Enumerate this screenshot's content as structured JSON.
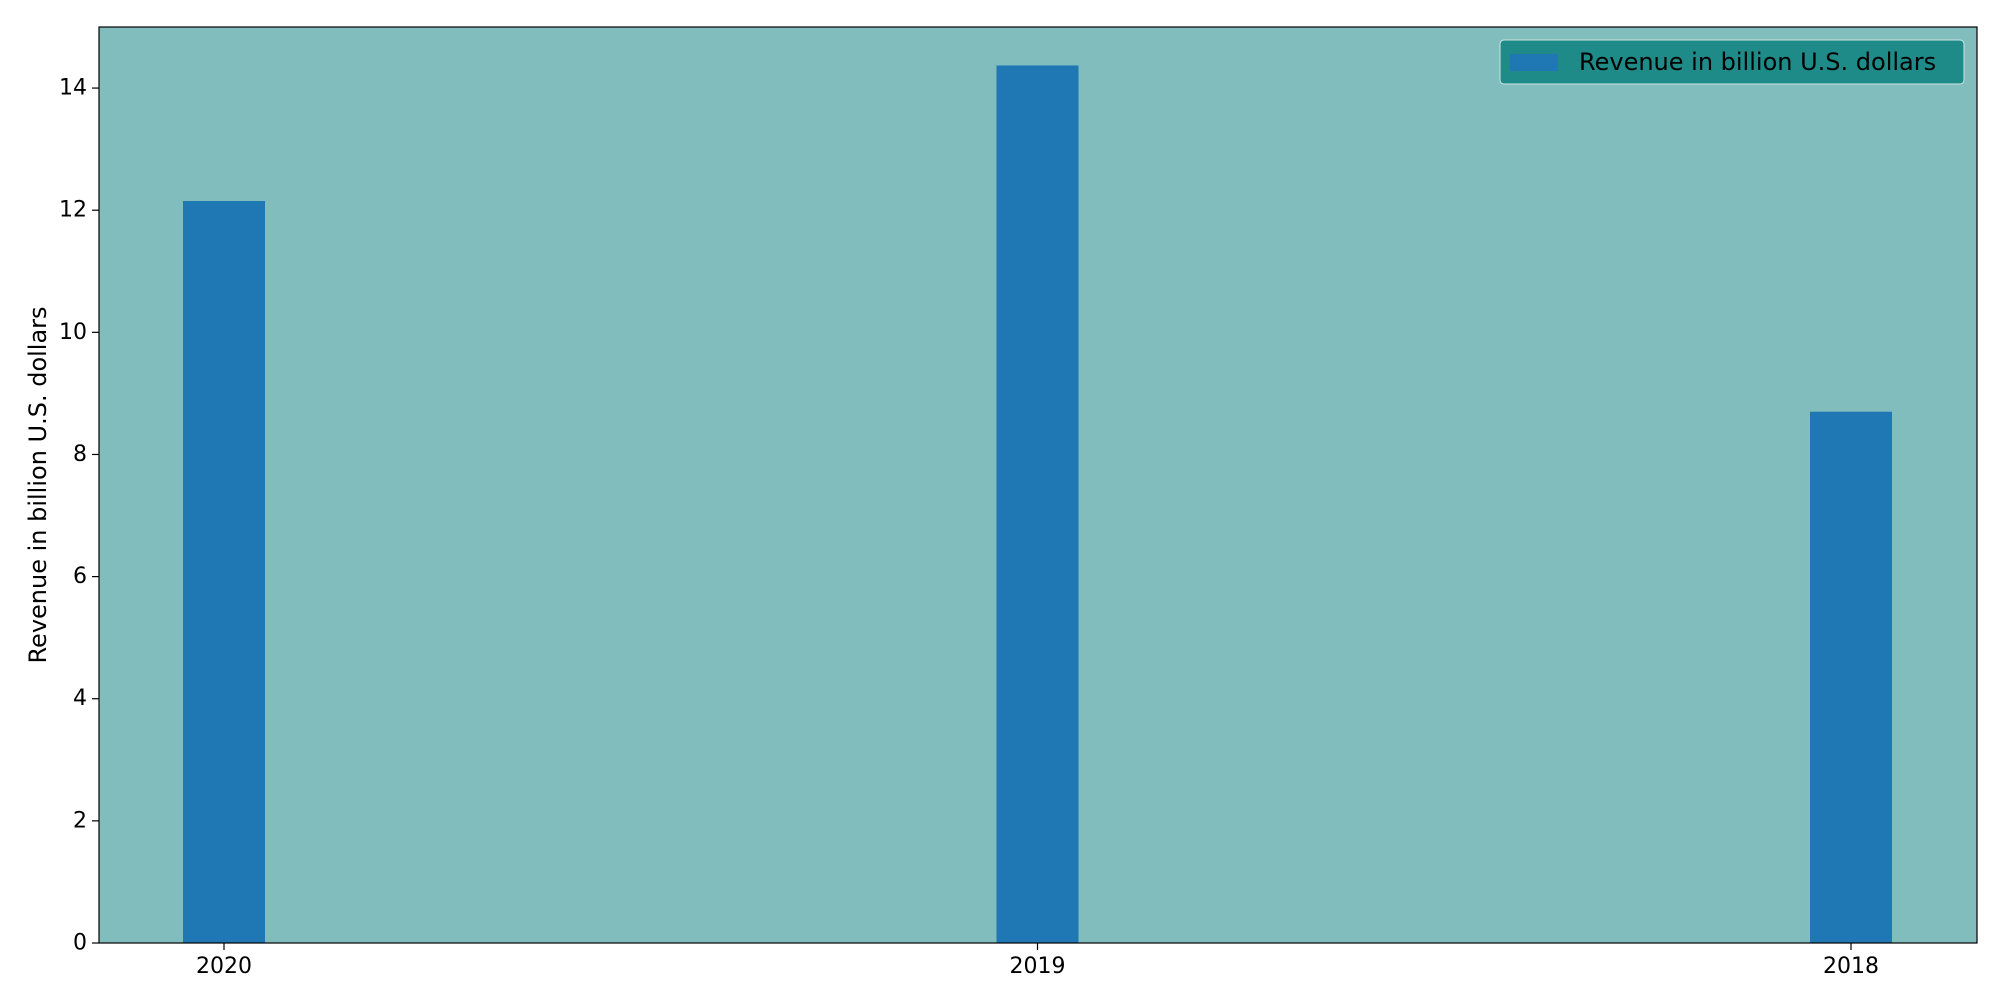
{
  "chart_data": {
    "type": "bar",
    "title": "",
    "xlabel": "",
    "ylabel": "Revenue in billion U.S. dollars",
    "categories": [
      "2020",
      "2019",
      "2018"
    ],
    "series": [
      {
        "name": "Revenue in billion U.S. dollars",
        "values": [
          12.15,
          14.37,
          8.7
        ],
        "color": "#1f77b4"
      }
    ],
    "ylim": [
      0,
      15
    ],
    "yticks": [
      0,
      2,
      4,
      6,
      8,
      10,
      12,
      14
    ],
    "grid": false,
    "legend": {
      "position": "top-right"
    },
    "colors": {
      "plot_background": "#82bdbe",
      "legend_background": "#1f8b89",
      "bar": "#1f77b4"
    }
  }
}
